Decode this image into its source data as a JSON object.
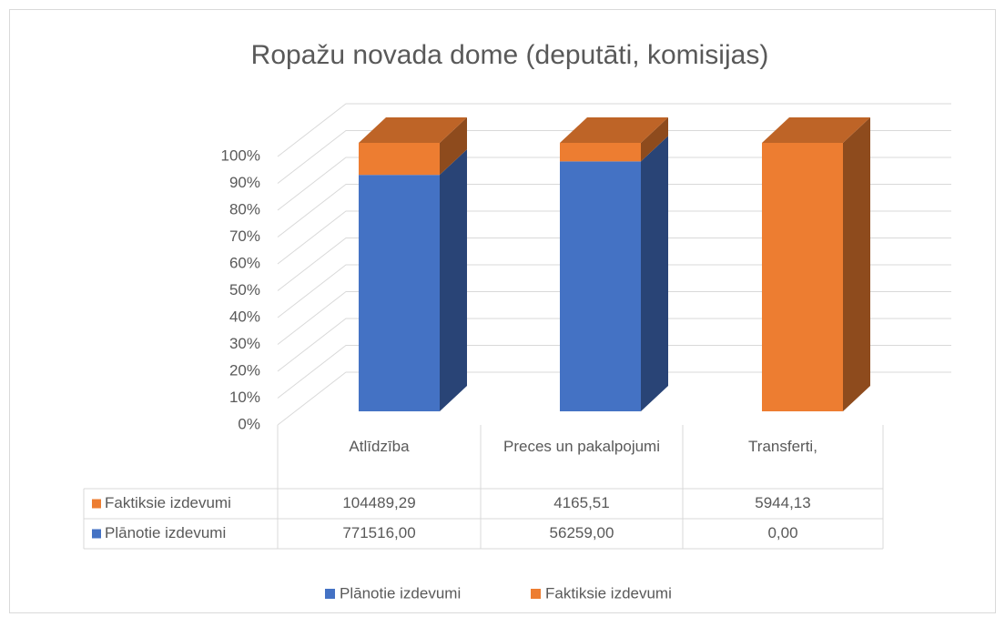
{
  "chart_data": {
    "type": "bar3d_stacked_percent",
    "title": "Ropažu novada dome (deputāti, komisijas)",
    "categories": [
      "Atlīdzība",
      "Preces un pakalpojumi",
      "Transferti,"
    ],
    "series": [
      {
        "name": "Plānotie izdevumi",
        "color": "#4472c4",
        "values": [
          771516.0,
          56259.0,
          0.0
        ],
        "value_labels": [
          "771516,00",
          "56259,00",
          "0,00"
        ]
      },
      {
        "name": "Faktiksie izdevumi",
        "color": "#ed7d31",
        "values": [
          104489.29,
          4165.51,
          5944.13
        ],
        "value_labels": [
          "104489,29",
          "4165,51",
          "5944,13"
        ]
      }
    ],
    "ylim": [
      0,
      100
    ],
    "yticks": [
      {
        "value": 0,
        "label": "0%"
      },
      {
        "value": 10,
        "label": "10%"
      },
      {
        "value": 20,
        "label": "20%"
      },
      {
        "value": 30,
        "label": "30%"
      },
      {
        "value": 40,
        "label": "40%"
      },
      {
        "value": 50,
        "label": "50%"
      },
      {
        "value": 60,
        "label": "60%"
      },
      {
        "value": 70,
        "label": "70%"
      },
      {
        "value": 80,
        "label": "80%"
      },
      {
        "value": 90,
        "label": "90%"
      },
      {
        "value": 100,
        "label": "100%"
      }
    ],
    "grid": true
  }
}
